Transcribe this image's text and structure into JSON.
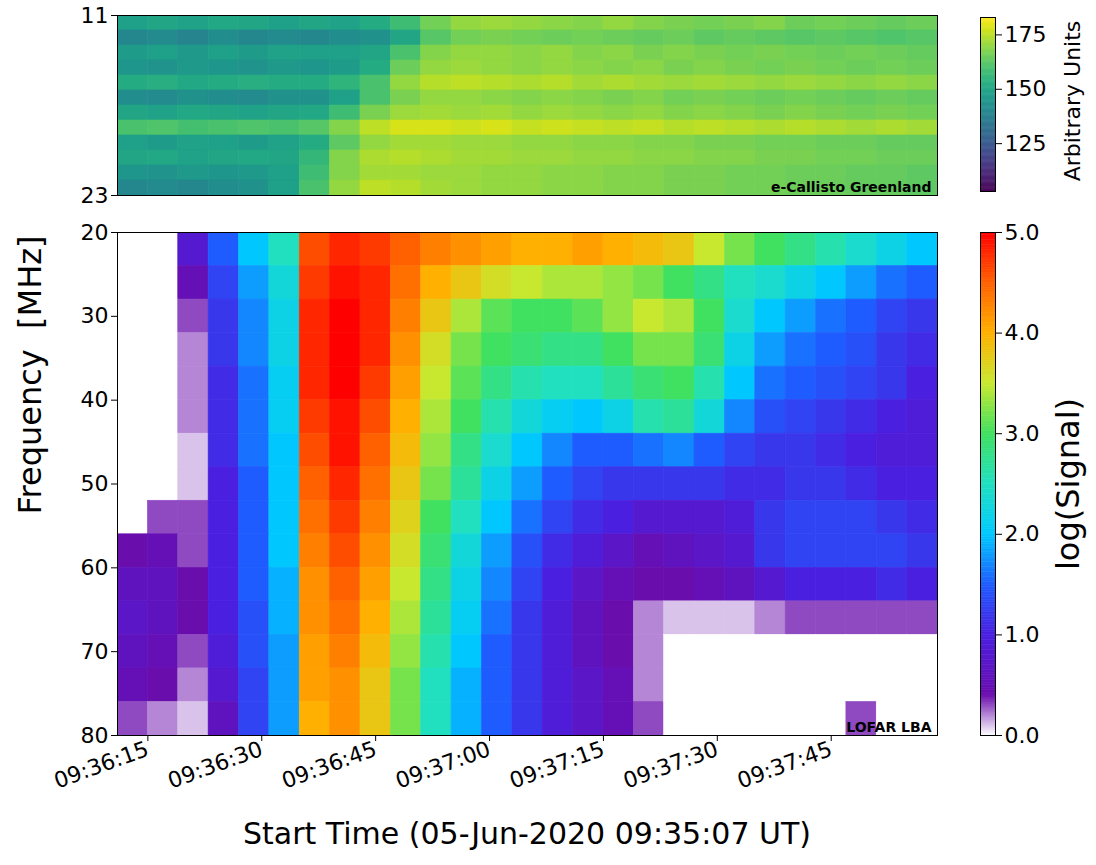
{
  "chart_data": [
    {
      "type": "heatmap",
      "annotations": [
        "e-Callisto Greenland"
      ],
      "color": "viridis",
      "tick_labels": "y",
      "xlim": [
        "09:36:11",
        "09:37:59"
      ],
      "ylim": [
        11,
        23
      ],
      "yticks": [
        11,
        23
      ],
      "colorbar": {
        "label": "Arbitrary Units",
        "lim": [
          103,
          183
        ],
        "ticks": [
          125,
          150,
          175
        ]
      },
      "cells": {
        "x_bins": [
          "09:36:11",
          "09:36:15",
          "09:36:19",
          "09:36:23",
          "09:36:27",
          "09:36:31",
          "09:36:35",
          "09:36:39",
          "09:36:43",
          "09:36:47",
          "09:36:51",
          "09:36:55",
          "09:36:59",
          "09:37:03",
          "09:37:07",
          "09:37:11",
          "09:37:15",
          "09:37:19",
          "09:37:23",
          "09:37:27",
          "09:37:31",
          "09:37:35",
          "09:37:39",
          "09:37:43",
          "09:37:47",
          "09:37:51",
          "09:37:55",
          "09:37:59"
        ],
        "y_bins": [
          11,
          12,
          13,
          14,
          15,
          16,
          17,
          18,
          19,
          20,
          21,
          22,
          23
        ],
        "values": [
          [
            148,
            150,
            149,
            151,
            150,
            148,
            150,
            149,
            152,
            158,
            166,
            170,
            171,
            170,
            169,
            168,
            170,
            168,
            167,
            166,
            167,
            168,
            165,
            166,
            165,
            164,
            165
          ],
          [
            140,
            141,
            139,
            142,
            140,
            141,
            140,
            142,
            143,
            150,
            162,
            166,
            167,
            166,
            165,
            166,
            165,
            164,
            165,
            163,
            164,
            163,
            162,
            163,
            162,
            161,
            162
          ],
          [
            147,
            148,
            146,
            148,
            147,
            149,
            148,
            148,
            150,
            160,
            168,
            170,
            170,
            169,
            170,
            168,
            169,
            167,
            168,
            167,
            166,
            167,
            166,
            165,
            166,
            165,
            164
          ],
          [
            145,
            144,
            146,
            145,
            144,
            146,
            145,
            147,
            152,
            165,
            170,
            171,
            170,
            169,
            170,
            169,
            168,
            169,
            167,
            168,
            167,
            166,
            167,
            166,
            165,
            166,
            165
          ],
          [
            152,
            153,
            151,
            152,
            153,
            152,
            152,
            155,
            160,
            170,
            174,
            175,
            174,
            173,
            174,
            172,
            173,
            172,
            171,
            172,
            171,
            170,
            171,
            170,
            169,
            170,
            169
          ],
          [
            142,
            141,
            143,
            142,
            141,
            143,
            143,
            148,
            160,
            167,
            170,
            170,
            169,
            168,
            169,
            168,
            167,
            168,
            166,
            167,
            166,
            165,
            166,
            165,
            164,
            165,
            164
          ],
          [
            150,
            149,
            151,
            150,
            149,
            150,
            151,
            158,
            167,
            171,
            172,
            171,
            172,
            170,
            171,
            170,
            169,
            170,
            168,
            169,
            168,
            167,
            168,
            167,
            166,
            167,
            166
          ],
          [
            160,
            161,
            159,
            160,
            161,
            160,
            162,
            168,
            175,
            178,
            178,
            177,
            178,
            176,
            177,
            176,
            175,
            176,
            174,
            175,
            174,
            173,
            174,
            173,
            172,
            173,
            172
          ],
          [
            148,
            147,
            149,
            148,
            147,
            149,
            152,
            163,
            170,
            172,
            172,
            171,
            171,
            170,
            170,
            169,
            169,
            168,
            168,
            167,
            167,
            166,
            166,
            165,
            165,
            164,
            164
          ],
          [
            150,
            151,
            149,
            150,
            151,
            150,
            156,
            168,
            173,
            174,
            173,
            172,
            172,
            171,
            171,
            170,
            170,
            169,
            169,
            168,
            168,
            167,
            167,
            166,
            166,
            165,
            165
          ],
          [
            145,
            144,
            146,
            145,
            146,
            148,
            158,
            168,
            172,
            172,
            171,
            171,
            170,
            170,
            169,
            169,
            168,
            168,
            167,
            167,
            166,
            166,
            165,
            165,
            164,
            164,
            163
          ],
          [
            140,
            141,
            140,
            142,
            143,
            148,
            160,
            170,
            175,
            174,
            172,
            171,
            170,
            170,
            169,
            169,
            168,
            168,
            167,
            167,
            166,
            166,
            165,
            165,
            164,
            164,
            163
          ]
        ]
      }
    },
    {
      "type": "heatmap",
      "annotations": [
        "LOFAR LBA"
      ],
      "color": "rainbow",
      "xlabel": "Start Time (05-Jun-2020 09:35:07 UT)",
      "ylabel": "Frequency  [MHz]",
      "xlim": [
        "09:36:11",
        "09:37:59"
      ],
      "xticks": [
        "09:36:15",
        "09:36:30",
        "09:36:45",
        "09:37:00",
        "09:37:15",
        "09:37:30",
        "09:37:45"
      ],
      "ylim": [
        20,
        80
      ],
      "yticks": [
        20,
        30,
        40,
        50,
        60,
        70,
        80
      ],
      "colorbar": {
        "label": "log(Signal)",
        "lim": [
          0,
          5
        ],
        "ticks": [
          0,
          1,
          2,
          3,
          4,
          5
        ]
      },
      "cells": {
        "x_bins": [
          "09:36:11",
          "09:36:15",
          "09:36:19",
          "09:36:23",
          "09:36:27",
          "09:36:31",
          "09:36:35",
          "09:36:39",
          "09:36:43",
          "09:36:47",
          "09:36:51",
          "09:36:55",
          "09:36:59",
          "09:37:03",
          "09:37:07",
          "09:37:11",
          "09:37:15",
          "09:37:19",
          "09:37:23",
          "09:37:27",
          "09:37:31",
          "09:37:35",
          "09:37:39",
          "09:37:43",
          "09:37:47",
          "09:37:51",
          "09:37:55",
          "09:37:59"
        ],
        "y_bins": [
          20,
          24,
          28,
          32,
          36,
          40,
          44,
          48,
          52,
          56,
          60,
          64,
          68,
          72,
          76,
          80
        ],
        "values": [
          [
            0,
            0,
            0.8,
            1.5,
            2.0,
            2.5,
            4.6,
            4.8,
            4.7,
            4.5,
            4.3,
            4.2,
            4.1,
            4.0,
            4.0,
            4.1,
            4.0,
            3.9,
            3.8,
            3.5,
            3.2,
            3.0,
            2.8,
            2.6,
            2.4,
            2.2,
            2.0
          ],
          [
            0,
            0,
            0.5,
            1.3,
            1.8,
            2.3,
            4.7,
            4.9,
            4.8,
            4.4,
            4.0,
            3.8,
            3.6,
            3.5,
            3.4,
            3.4,
            3.3,
            3.2,
            3.0,
            2.8,
            2.5,
            2.4,
            2.2,
            2.0,
            1.8,
            1.6,
            1.5
          ],
          [
            0,
            0,
            0.3,
            1.2,
            1.7,
            2.2,
            4.8,
            5.0,
            4.8,
            4.3,
            3.8,
            3.4,
            3.1,
            3.0,
            3.0,
            3.1,
            3.3,
            3.5,
            3.4,
            3.0,
            2.4,
            2.0,
            1.8,
            1.6,
            1.5,
            1.3,
            1.2
          ],
          [
            0,
            0,
            0.2,
            1.2,
            1.7,
            2.2,
            4.8,
            5.0,
            4.8,
            4.2,
            3.6,
            3.2,
            3.0,
            2.9,
            2.8,
            2.8,
            3.0,
            3.2,
            3.2,
            2.9,
            2.2,
            1.8,
            1.6,
            1.5,
            1.4,
            1.2,
            1.1
          ],
          [
            0,
            0,
            0.2,
            1.1,
            1.6,
            2.1,
            4.8,
            5.0,
            4.7,
            4.1,
            3.5,
            3.1,
            2.8,
            2.6,
            2.5,
            2.5,
            2.7,
            2.9,
            3.0,
            2.6,
            2.0,
            1.6,
            1.5,
            1.4,
            1.3,
            1.2,
            1.0
          ],
          [
            0,
            0,
            0.2,
            1.1,
            1.6,
            2.1,
            4.7,
            4.9,
            4.6,
            4.0,
            3.4,
            3.0,
            2.6,
            2.3,
            2.1,
            2.0,
            2.2,
            2.6,
            2.7,
            2.3,
            1.7,
            1.4,
            1.3,
            1.2,
            1.1,
            1.0,
            0.9
          ],
          [
            0,
            0,
            0.1,
            1.1,
            1.6,
            2.0,
            4.6,
            4.9,
            4.5,
            3.9,
            3.3,
            2.8,
            2.4,
            2.0,
            1.7,
            1.5,
            1.5,
            1.6,
            1.7,
            1.5,
            1.3,
            1.2,
            1.2,
            1.1,
            1.0,
            0.9,
            0.9
          ],
          [
            0,
            0,
            0.1,
            1.0,
            1.5,
            2.0,
            4.5,
            4.8,
            4.4,
            3.8,
            3.2,
            2.7,
            2.2,
            1.8,
            1.5,
            1.3,
            1.2,
            1.2,
            1.2,
            1.2,
            1.1,
            1.1,
            1.2,
            1.2,
            1.1,
            1.0,
            1.0
          ],
          [
            0,
            0.3,
            0.3,
            1.0,
            1.5,
            2.0,
            4.4,
            4.7,
            4.3,
            3.7,
            3.0,
            2.5,
            2.0,
            1.6,
            1.3,
            1.1,
            1.0,
            0.8,
            0.8,
            0.8,
            0.9,
            1.2,
            1.3,
            1.3,
            1.3,
            1.2,
            1.1
          ],
          [
            0.4,
            0.5,
            0.3,
            1.0,
            1.5,
            2.0,
            4.3,
            4.6,
            4.2,
            3.6,
            2.9,
            2.3,
            1.8,
            1.4,
            1.1,
            0.9,
            0.7,
            0.5,
            0.6,
            0.7,
            0.8,
            1.2,
            1.3,
            1.3,
            1.3,
            1.3,
            1.2
          ],
          [
            0.6,
            0.6,
            0.4,
            1.0,
            1.5,
            1.9,
            4.2,
            4.5,
            4.1,
            3.5,
            2.8,
            2.2,
            1.7,
            1.3,
            1.0,
            0.7,
            0.5,
            0.4,
            0.4,
            0.5,
            0.6,
            0.8,
            1.0,
            1.0,
            1.0,
            1.1,
            1.0
          ],
          [
            0.7,
            0.6,
            0.4,
            1.0,
            1.4,
            1.9,
            4.2,
            4.4,
            4.0,
            3.4,
            2.7,
            2.1,
            1.6,
            1.2,
            0.9,
            0.6,
            0.4,
            0.2,
            0.1,
            0.1,
            0.1,
            0.2,
            0.3,
            0.3,
            0.3,
            0.3,
            0.3
          ],
          [
            0.6,
            0.5,
            0.3,
            0.9,
            1.4,
            1.8,
            4.1,
            4.3,
            3.9,
            3.3,
            2.6,
            2.0,
            1.5,
            1.2,
            0.9,
            0.6,
            0.4,
            0.2,
            0,
            0,
            0,
            0,
            0,
            0,
            0,
            0,
            0
          ],
          [
            0.5,
            0.4,
            0.2,
            0.8,
            1.3,
            1.8,
            4.1,
            4.2,
            3.8,
            3.2,
            2.5,
            1.9,
            1.5,
            1.2,
            0.9,
            0.7,
            0.5,
            0.2,
            0,
            0,
            0,
            0,
            0,
            0,
            0,
            0,
            0
          ],
          [
            0.3,
            0.2,
            0.1,
            0.6,
            1.3,
            1.8,
            4.0,
            4.2,
            3.8,
            3.2,
            2.5,
            1.9,
            1.5,
            1.2,
            0.9,
            0.7,
            0.5,
            0.3,
            0,
            0,
            0,
            0,
            0,
            0,
            0.3,
            0,
            0
          ]
        ]
      }
    }
  ]
}
